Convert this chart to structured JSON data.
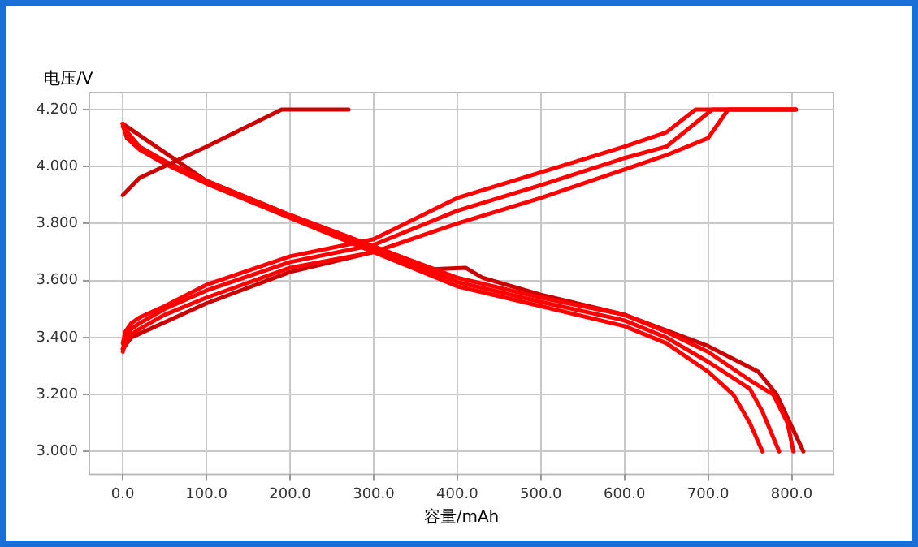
{
  "chart_data": {
    "type": "line",
    "xlabel": "容量/mAh",
    "ylabel": "电压/V",
    "xlim": [
      -40,
      850
    ],
    "ylim": [
      2.92,
      4.26
    ],
    "xticks": [
      {
        "value": 0,
        "label": "0.0"
      },
      {
        "value": 100,
        "label": "100.0"
      },
      {
        "value": 200,
        "label": "200.0"
      },
      {
        "value": 300,
        "label": "300.0"
      },
      {
        "value": 400,
        "label": "400.0"
      },
      {
        "value": 500,
        "label": "500.0"
      },
      {
        "value": 600,
        "label": "600.0"
      },
      {
        "value": 700,
        "label": "700.0"
      },
      {
        "value": 800,
        "label": "800.0"
      }
    ],
    "yticks": [
      {
        "value": 3.0,
        "label": "3.000"
      },
      {
        "value": 3.2,
        "label": "3.200"
      },
      {
        "value": 3.4,
        "label": "3.400"
      },
      {
        "value": 3.6,
        "label": "3.600"
      },
      {
        "value": 3.8,
        "label": "3.800"
      },
      {
        "value": 4.0,
        "label": "4.000"
      },
      {
        "value": 4.2,
        "label": "4.200"
      }
    ],
    "grid": true,
    "legend": false,
    "marker": "none",
    "line_style": "solid",
    "series": [
      {
        "color": "#ff0000",
        "x": [
          0,
          3,
          10,
          20,
          50,
          100,
          200,
          300,
          400,
          500,
          600,
          650,
          685,
          805
        ],
        "values": [
          3.38,
          3.42,
          3.45,
          3.47,
          3.51,
          3.585,
          3.685,
          3.745,
          3.89,
          3.98,
          4.07,
          4.12,
          4.2,
          4.2
        ]
      },
      {
        "color": "#ff0000",
        "x": [
          0,
          3,
          10,
          20,
          50,
          100,
          200,
          300,
          400,
          500,
          600,
          650,
          705,
          805
        ],
        "values": [
          3.36,
          3.4,
          3.43,
          3.45,
          3.5,
          3.565,
          3.665,
          3.725,
          3.845,
          3.935,
          4.03,
          4.07,
          4.2,
          4.2
        ]
      },
      {
        "color": "#ff0000",
        "x": [
          0,
          3,
          10,
          20,
          50,
          100,
          200,
          300,
          400,
          500,
          600,
          650,
          700,
          724,
          805
        ],
        "values": [
          3.35,
          3.38,
          3.41,
          3.43,
          3.48,
          3.54,
          3.645,
          3.7,
          3.8,
          3.89,
          3.99,
          4.04,
          4.1,
          4.2,
          4.2
        ]
      },
      {
        "color": "#cc0000",
        "x": [
          0,
          10,
          100,
          200,
          300
        ],
        "values": [
          3.36,
          3.4,
          3.52,
          3.63,
          3.7
        ]
      },
      {
        "color": "#cc0000",
        "x": [
          0,
          20,
          100,
          190,
          270
        ],
        "values": [
          3.9,
          3.96,
          4.07,
          4.2,
          4.2
        ]
      },
      {
        "color": "#ff0000",
        "x": [
          0,
          5,
          20,
          50,
          100,
          200,
          300,
          400,
          500,
          600,
          650,
          700,
          730,
          750,
          765
        ],
        "values": [
          4.15,
          4.1,
          4.06,
          4.01,
          3.94,
          3.82,
          3.7,
          3.58,
          3.51,
          3.44,
          3.38,
          3.28,
          3.2,
          3.1,
          3.0
        ]
      },
      {
        "color": "#ff0000",
        "x": [
          0,
          5,
          20,
          50,
          100,
          200,
          300,
          400,
          500,
          600,
          650,
          700,
          750,
          765,
          785
        ],
        "values": [
          4.15,
          4.1,
          4.065,
          4.015,
          3.945,
          3.825,
          3.71,
          3.595,
          3.525,
          3.46,
          3.4,
          3.315,
          3.22,
          3.14,
          3.0
        ]
      },
      {
        "color": "#ff0000",
        "x": [
          0,
          20,
          50,
          100,
          200,
          300,
          400,
          500,
          600,
          650,
          700,
          750,
          778,
          795,
          802
        ],
        "values": [
          4.14,
          4.07,
          4.02,
          3.95,
          3.83,
          3.72,
          3.61,
          3.54,
          3.48,
          3.42,
          3.35,
          3.25,
          3.2,
          3.1,
          3.0
        ]
      },
      {
        "color": "#cc0000",
        "x": [
          0,
          100,
          200,
          300,
          370,
          410,
          430,
          500,
          600,
          700,
          760,
          782,
          814
        ],
        "values": [
          4.15,
          3.95,
          3.83,
          3.72,
          3.64,
          3.645,
          3.61,
          3.55,
          3.48,
          3.37,
          3.28,
          3.2,
          3.0
        ]
      }
    ]
  }
}
